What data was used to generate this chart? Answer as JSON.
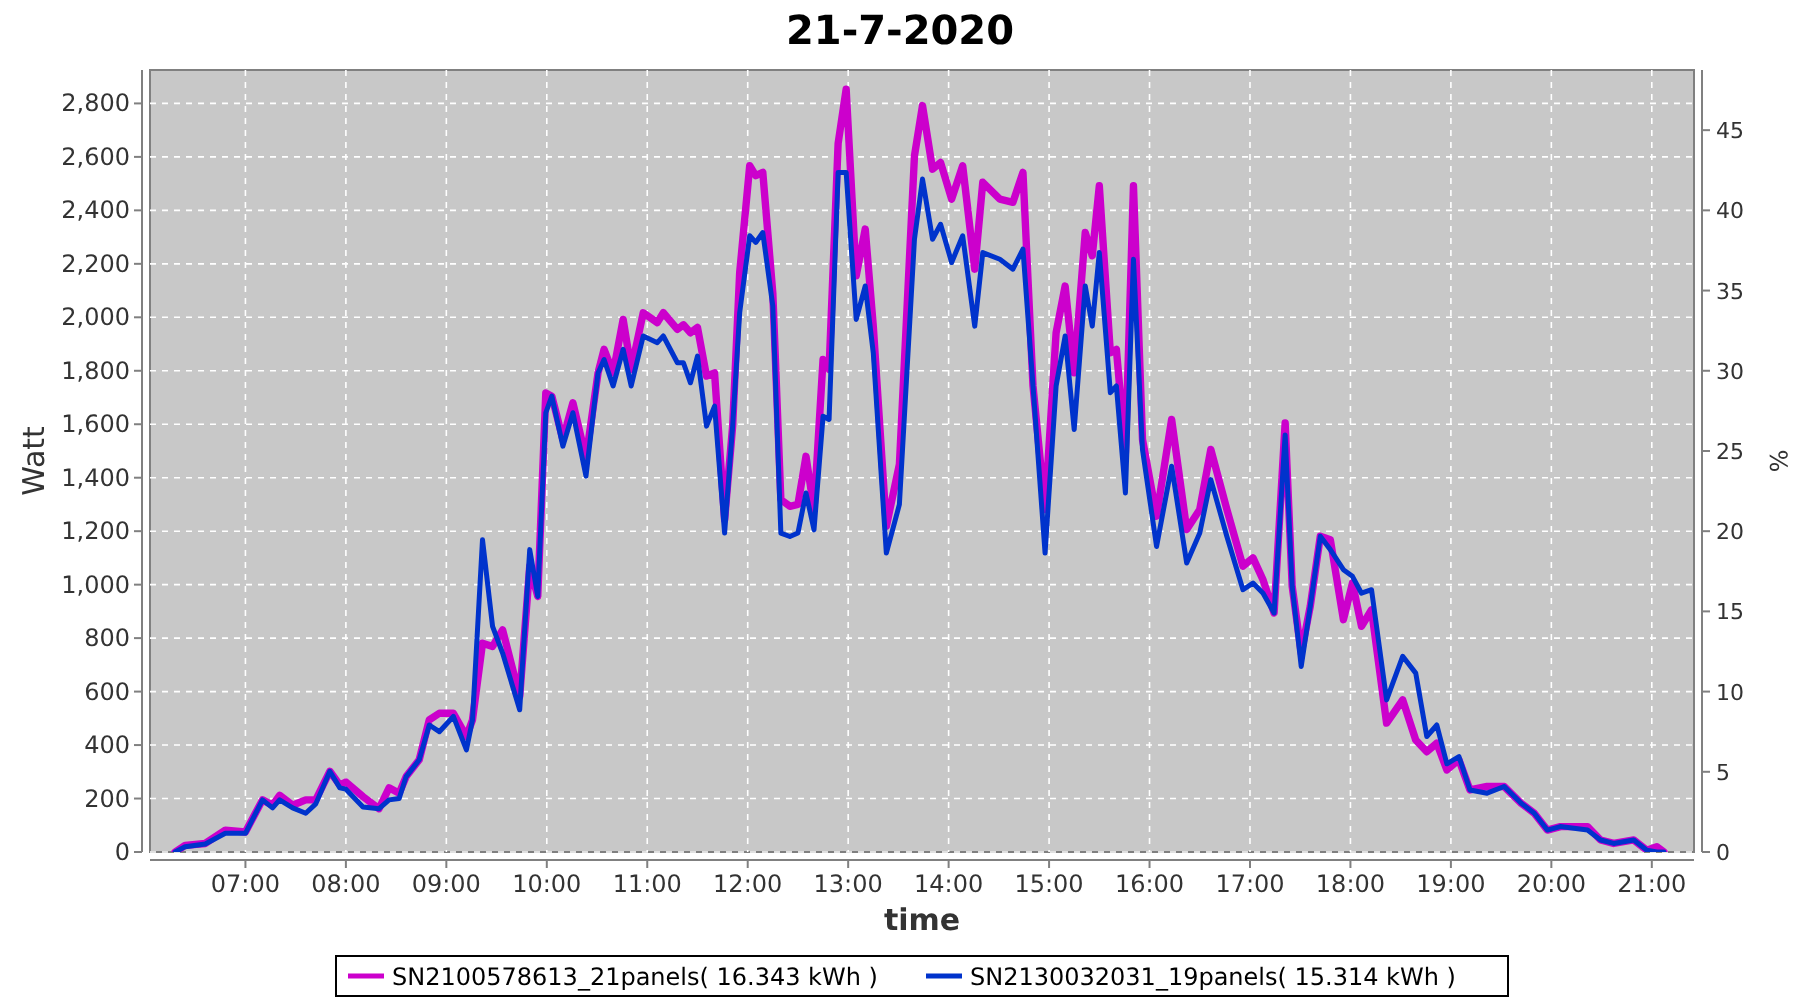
{
  "chart_data": {
    "type": "line",
    "title": "21-7-2020",
    "xlabel": "time",
    "ylabel": "Watt",
    "y2label": "%",
    "x": [
      6.3,
      6.4,
      6.6,
      6.8,
      7.0,
      7.17,
      7.27,
      7.34,
      7.47,
      7.6,
      7.7,
      7.84,
      7.94,
      8.0,
      8.17,
      8.33,
      8.43,
      8.53,
      8.6,
      8.73,
      8.83,
      8.93,
      9.07,
      9.2,
      9.26,
      9.36,
      9.46,
      9.56,
      9.73,
      9.83,
      9.91,
      9.99,
      10.05,
      10.16,
      10.26,
      10.39,
      10.51,
      10.57,
      10.66,
      10.76,
      10.84,
      10.96,
      11.1,
      11.16,
      11.3,
      11.36,
      11.43,
      11.5,
      11.59,
      11.67,
      11.77,
      11.85,
      11.92,
      12.02,
      12.08,
      12.15,
      12.25,
      12.33,
      12.42,
      12.5,
      12.58,
      12.66,
      12.75,
      12.81,
      12.9,
      12.98,
      13.08,
      13.17,
      13.25,
      13.38,
      13.51,
      13.66,
      13.74,
      13.84,
      13.92,
      14.03,
      14.14,
      14.26,
      14.34,
      14.51,
      14.64,
      14.74,
      14.84,
      14.96,
      15.07,
      15.16,
      15.25,
      15.36,
      15.43,
      15.5,
      15.61,
      15.67,
      15.76,
      15.84,
      15.93,
      16.07,
      16.22,
      16.37,
      16.5,
      16.61,
      16.77,
      16.93,
      17.03,
      17.13,
      17.24,
      17.35,
      17.42,
      17.51,
      17.6,
      17.7,
      17.8,
      17.93,
      18.02,
      18.11,
      18.21,
      18.36,
      18.52,
      18.65,
      18.76,
      18.86,
      18.96,
      19.08,
      19.19,
      19.36,
      19.53,
      19.7,
      19.83,
      19.96,
      20.09,
      20.36,
      20.49,
      20.62,
      20.82,
      20.95,
      21.05,
      21.12
    ],
    "series": [
      {
        "name": "SN2100578613_21panels( 16.343 kWh )",
        "color": "#cc00cc",
        "values": [
          0,
          25,
          32,
          82,
          75,
          195,
          175,
          212,
          175,
          195,
          195,
          302,
          250,
          262,
          207,
          162,
          240,
          220,
          282,
          345,
          494,
          519,
          519,
          432,
          494,
          781,
          769,
          831,
          581,
          1069,
          956,
          1717,
          1705,
          1543,
          1680,
          1473,
          1792,
          1880,
          1792,
          1992,
          1805,
          2017,
          1980,
          2017,
          1955,
          1972,
          1942,
          1962,
          1780,
          1792,
          1243,
          1593,
          2167,
          2567,
          2530,
          2542,
          2090,
          1318,
          1293,
          1300,
          1480,
          1280,
          1842,
          1805,
          2650,
          2853,
          2155,
          2330,
          1967,
          1218,
          1450,
          2604,
          2792,
          2554,
          2579,
          2442,
          2567,
          2180,
          2505,
          2442,
          2430,
          2542,
          1743,
          1281,
          1942,
          2117,
          1792,
          2317,
          2230,
          2492,
          1867,
          1880,
          1493,
          2492,
          1543,
          1256,
          1618,
          1206,
          1281,
          1506,
          1281,
          1069,
          1100,
          1018,
          894,
          1605,
          994,
          744,
          919,
          1181,
          1168,
          869,
          1006,
          844,
          906,
          482,
          569,
          419,
          375,
          407,
          307,
          345,
          232,
          245,
          245,
          182,
          145,
          82,
          95,
          95,
          45,
          32,
          45,
          7,
          20,
          0
        ]
      },
      {
        "name": "SN2130032031_19panels( 15.314 kWh )",
        "color": "#0033cc",
        "values": [
          0,
          20,
          30,
          70,
          70,
          195,
          165,
          195,
          165,
          145,
          180,
          302,
          240,
          235,
          168,
          162,
          195,
          200,
          282,
          345,
          475,
          450,
          507,
          382,
          494,
          1168,
          844,
          744,
          532,
          1131,
          956,
          1643,
          1705,
          1518,
          1643,
          1406,
          1792,
          1842,
          1743,
          1880,
          1743,
          1930,
          1905,
          1930,
          1830,
          1830,
          1755,
          1855,
          1593,
          1668,
          1193,
          1593,
          2017,
          2305,
          2280,
          2317,
          2042,
          1193,
          1180,
          1193,
          1343,
          1205,
          1630,
          1618,
          2542,
          2542,
          1992,
          2117,
          1867,
          1118,
          1300,
          2292,
          2517,
          2292,
          2348,
          2205,
          2305,
          1967,
          2242,
          2217,
          2180,
          2255,
          1743,
          1118,
          1743,
          1930,
          1580,
          2117,
          1967,
          2242,
          1718,
          1743,
          1343,
          2217,
          1505,
          1143,
          1443,
          1081,
          1193,
          1393,
          1180,
          981,
          1006,
          968,
          894,
          1560,
          994,
          694,
          919,
          1181,
          1131,
          1056,
          1031,
          968,
          981,
          569,
          732,
          669,
          432,
          475,
          330,
          357,
          232,
          220,
          245,
          182,
          145,
          82,
          95,
          82,
          45,
          32,
          45,
          7,
          0,
          0
        ]
      }
    ],
    "xlim": [
      6.05,
      21.42
    ],
    "xticks": [
      {
        "value": 7,
        "label": "07:00"
      },
      {
        "value": 8,
        "label": "08:00"
      },
      {
        "value": 9,
        "label": "09:00"
      },
      {
        "value": 10,
        "label": "10:00"
      },
      {
        "value": 11,
        "label": "11:00"
      },
      {
        "value": 12,
        "label": "12:00"
      },
      {
        "value": 13,
        "label": "13:00"
      },
      {
        "value": 14,
        "label": "14:00"
      },
      {
        "value": 15,
        "label": "15:00"
      },
      {
        "value": 16,
        "label": "16:00"
      },
      {
        "value": 17,
        "label": "17:00"
      },
      {
        "value": 18,
        "label": "18:00"
      },
      {
        "value": 19,
        "label": "19:00"
      },
      {
        "value": 20,
        "label": "20:00"
      },
      {
        "value": 21,
        "label": "21:00"
      }
    ],
    "ylim": [
      0,
      2925
    ],
    "yticks": [
      {
        "value": 0,
        "label": "0"
      },
      {
        "value": 200,
        "label": "200"
      },
      {
        "value": 400,
        "label": "400"
      },
      {
        "value": 600,
        "label": "600"
      },
      {
        "value": 800,
        "label": "800"
      },
      {
        "value": 1000,
        "label": "1,000"
      },
      {
        "value": 1200,
        "label": "1,200"
      },
      {
        "value": 1400,
        "label": "1,400"
      },
      {
        "value": 1600,
        "label": "1,600"
      },
      {
        "value": 1800,
        "label": "1,800"
      },
      {
        "value": 2000,
        "label": "2,000"
      },
      {
        "value": 2200,
        "label": "2,200"
      },
      {
        "value": 2400,
        "label": "2,400"
      },
      {
        "value": 2600,
        "label": "2,600"
      },
      {
        "value": 2800,
        "label": "2,800"
      }
    ],
    "y2lim": [
      0,
      48.75
    ],
    "y2ticks": [
      0,
      5,
      10,
      15,
      20,
      25,
      30,
      35,
      40,
      45
    ],
    "grid": true,
    "legend": "bottom"
  }
}
